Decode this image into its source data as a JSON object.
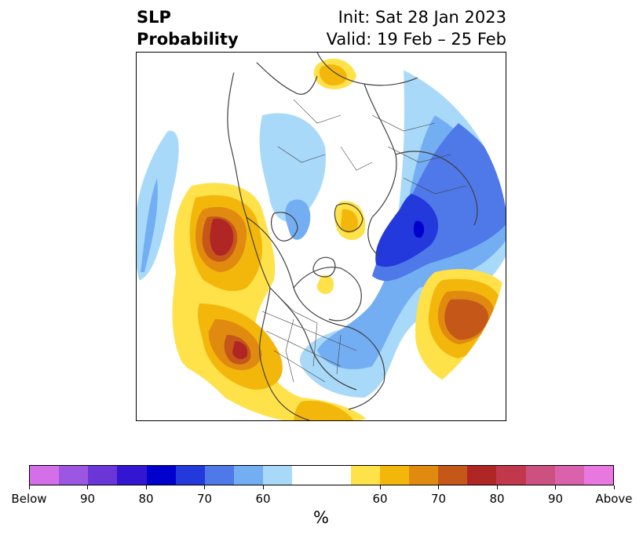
{
  "title": {
    "left_line1": "SLP",
    "left_line2": "Probability",
    "right_line1": "Init: Sat 28 Jan 2023",
    "right_line2": "Valid: 19 Feb – 25 Feb"
  },
  "colorbar": {
    "unit_label": "%",
    "below_colors": [
      "#d46fe9",
      "#9d56e2",
      "#6b36d7",
      "#3316d1",
      "#0000cc",
      "#2339dc",
      "#4f78e8",
      "#73aef3",
      "#a9d9f9"
    ],
    "neutral_color": "#ffffff",
    "above_colors": [
      "#ffe14a",
      "#f3b70c",
      "#e08b10",
      "#c55719",
      "#b02624",
      "#c1384c",
      "#cd5180",
      "#da62ad",
      "#e878e0"
    ],
    "tick_labels": [
      "Below",
      "90",
      "80",
      "70",
      "60",
      "60",
      "70",
      "80",
      "90",
      "Above"
    ]
  },
  "map": {
    "projection": "north-polar-stereographic",
    "variable": "sea-level-pressure tercile probability"
  }
}
